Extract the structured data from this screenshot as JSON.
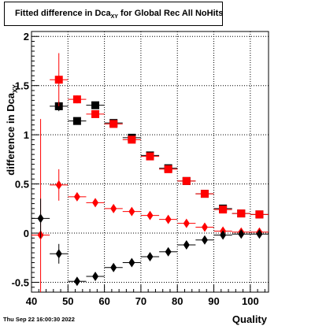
{
  "title": {
    "main": "Fitted difference in Dca",
    "sub": "XY",
    "rest": " for Global Rec All NoHits"
  },
  "timestamp": "Thu Sep 22 16:00:30 2022",
  "colors": {
    "red": "#ff0000",
    "black": "#000000"
  },
  "chart_data": {
    "type": "scatter",
    "title": "Fitted difference in Dca_XY for Global Rec All NoHits",
    "xlabel": "Quality",
    "ylabel": "difference in Dca",
    "ylabel_sub": "XY",
    "xlim": [
      40,
      105
    ],
    "ylim": [
      -0.6,
      2.05
    ],
    "grid": true,
    "xticks": [
      40,
      50,
      60,
      70,
      80,
      90,
      100
    ],
    "xtick_labels": [
      "40",
      "50",
      "60",
      "70",
      "80",
      "90",
      "100"
    ],
    "yticks": [
      -0.5,
      0,
      0.5,
      1,
      1.5,
      2
    ],
    "ytick_labels": [
      "-0.5",
      "0",
      "0.5",
      "1",
      "1.5",
      "2"
    ],
    "series": [
      {
        "marker": "square",
        "color": "black",
        "points": [
          {
            "x": 47.5,
            "y": 1.29,
            "xerr": 2.5,
            "yerr": 0.05
          },
          {
            "x": 52.5,
            "y": 1.14,
            "xerr": 2.5,
            "yerr": 0.03
          },
          {
            "x": 57.5,
            "y": 1.3,
            "xerr": 2.5,
            "yerr": 0.03
          },
          {
            "x": 62.5,
            "y": 1.12,
            "xerr": 2.5,
            "yerr": 0.02
          },
          {
            "x": 67.5,
            "y": 0.97,
            "xerr": 2.5,
            "yerr": 0.02
          },
          {
            "x": 72.5,
            "y": 0.79,
            "xerr": 2.5,
            "yerr": 0.02
          },
          {
            "x": 77.5,
            "y": 0.66,
            "xerr": 2.5,
            "yerr": 0.02
          },
          {
            "x": 82.5,
            "y": 0.53,
            "xerr": 2.5,
            "yerr": 0.02
          },
          {
            "x": 87.5,
            "y": 0.4,
            "xerr": 2.5,
            "yerr": 0.02
          },
          {
            "x": 92.5,
            "y": 0.25,
            "xerr": 2.5,
            "yerr": 0.02
          },
          {
            "x": 97.5,
            "y": 0.2,
            "xerr": 2.5,
            "yerr": 0.02
          },
          {
            "x": 102.5,
            "y": 0.19,
            "xerr": 2.5,
            "yerr": 0.02
          }
        ]
      },
      {
        "marker": "square",
        "color": "red",
        "points": [
          {
            "x": 47.5,
            "y": 1.56,
            "xerr": 2.5,
            "yerr": 0.27
          },
          {
            "x": 52.5,
            "y": 1.36,
            "xerr": 2.5,
            "yerr": 0.04
          },
          {
            "x": 57.5,
            "y": 1.21,
            "xerr": 2.5,
            "yerr": 0.03
          },
          {
            "x": 62.5,
            "y": 1.11,
            "xerr": 2.5,
            "yerr": 0.02
          },
          {
            "x": 67.5,
            "y": 0.95,
            "xerr": 2.5,
            "yerr": 0.02
          },
          {
            "x": 72.5,
            "y": 0.78,
            "xerr": 2.5,
            "yerr": 0.02
          },
          {
            "x": 77.5,
            "y": 0.65,
            "xerr": 2.5,
            "yerr": 0.02
          },
          {
            "x": 82.5,
            "y": 0.53,
            "xerr": 2.5,
            "yerr": 0.02
          },
          {
            "x": 87.5,
            "y": 0.4,
            "xerr": 2.5,
            "yerr": 0.02
          },
          {
            "x": 92.5,
            "y": 0.24,
            "xerr": 2.5,
            "yerr": 0.02
          },
          {
            "x": 97.5,
            "y": 0.2,
            "xerr": 2.5,
            "yerr": 0.02
          },
          {
            "x": 102.5,
            "y": 0.19,
            "xerr": 2.5,
            "yerr": 0.02
          }
        ]
      },
      {
        "marker": "diamond",
        "color": "red",
        "points": [
          {
            "x": 42.5,
            "y": -0.02,
            "xerr": 2.5,
            "yerr": 1.18
          },
          {
            "x": 47.5,
            "y": 0.49,
            "xerr": 2.5,
            "yerr": 0.16
          },
          {
            "x": 52.5,
            "y": 0.37,
            "xerr": 2.5,
            "yerr": 0.04
          },
          {
            "x": 57.5,
            "y": 0.31,
            "xerr": 2.5,
            "yerr": 0.02
          },
          {
            "x": 62.5,
            "y": 0.25,
            "xerr": 2.5,
            "yerr": 0.02
          },
          {
            "x": 67.5,
            "y": 0.22,
            "xerr": 2.5,
            "yerr": 0.02
          },
          {
            "x": 72.5,
            "y": 0.18,
            "xerr": 2.5,
            "yerr": 0.01
          },
          {
            "x": 77.5,
            "y": 0.14,
            "xerr": 2.5,
            "yerr": 0.01
          },
          {
            "x": 82.5,
            "y": 0.1,
            "xerr": 2.5,
            "yerr": 0.01
          },
          {
            "x": 87.5,
            "y": 0.06,
            "xerr": 2.5,
            "yerr": 0.01
          },
          {
            "x": 92.5,
            "y": 0.02,
            "xerr": 2.5,
            "yerr": 0.01
          },
          {
            "x": 97.5,
            "y": 0.01,
            "xerr": 2.5,
            "yerr": 0.01
          },
          {
            "x": 102.5,
            "y": 0.01,
            "xerr": 2.5,
            "yerr": 0.01
          }
        ]
      },
      {
        "marker": "diamond",
        "color": "black",
        "points": [
          {
            "x": 42.5,
            "y": 0.15,
            "xerr": 2.5,
            "yerr": 0.2
          },
          {
            "x": 47.5,
            "y": -0.21,
            "xerr": 2.5,
            "yerr": 0.1
          },
          {
            "x": 52.5,
            "y": -0.49,
            "xerr": 2.5,
            "yerr": 0.04
          },
          {
            "x": 57.5,
            "y": -0.44,
            "xerr": 2.5,
            "yerr": 0.02
          },
          {
            "x": 62.5,
            "y": -0.35,
            "xerr": 2.5,
            "yerr": 0.02
          },
          {
            "x": 67.5,
            "y": -0.3,
            "xerr": 2.5,
            "yerr": 0.02
          },
          {
            "x": 72.5,
            "y": -0.24,
            "xerr": 2.5,
            "yerr": 0.01
          },
          {
            "x": 77.5,
            "y": -0.19,
            "xerr": 2.5,
            "yerr": 0.01
          },
          {
            "x": 82.5,
            "y": -0.12,
            "xerr": 2.5,
            "yerr": 0.01
          },
          {
            "x": 87.5,
            "y": -0.07,
            "xerr": 2.5,
            "yerr": 0.01
          },
          {
            "x": 92.5,
            "y": -0.02,
            "xerr": 2.5,
            "yerr": 0.01
          },
          {
            "x": 97.5,
            "y": -0.01,
            "xerr": 2.5,
            "yerr": 0.01
          },
          {
            "x": 102.5,
            "y": -0.01,
            "xerr": 2.5,
            "yerr": 0.01
          }
        ]
      }
    ]
  }
}
